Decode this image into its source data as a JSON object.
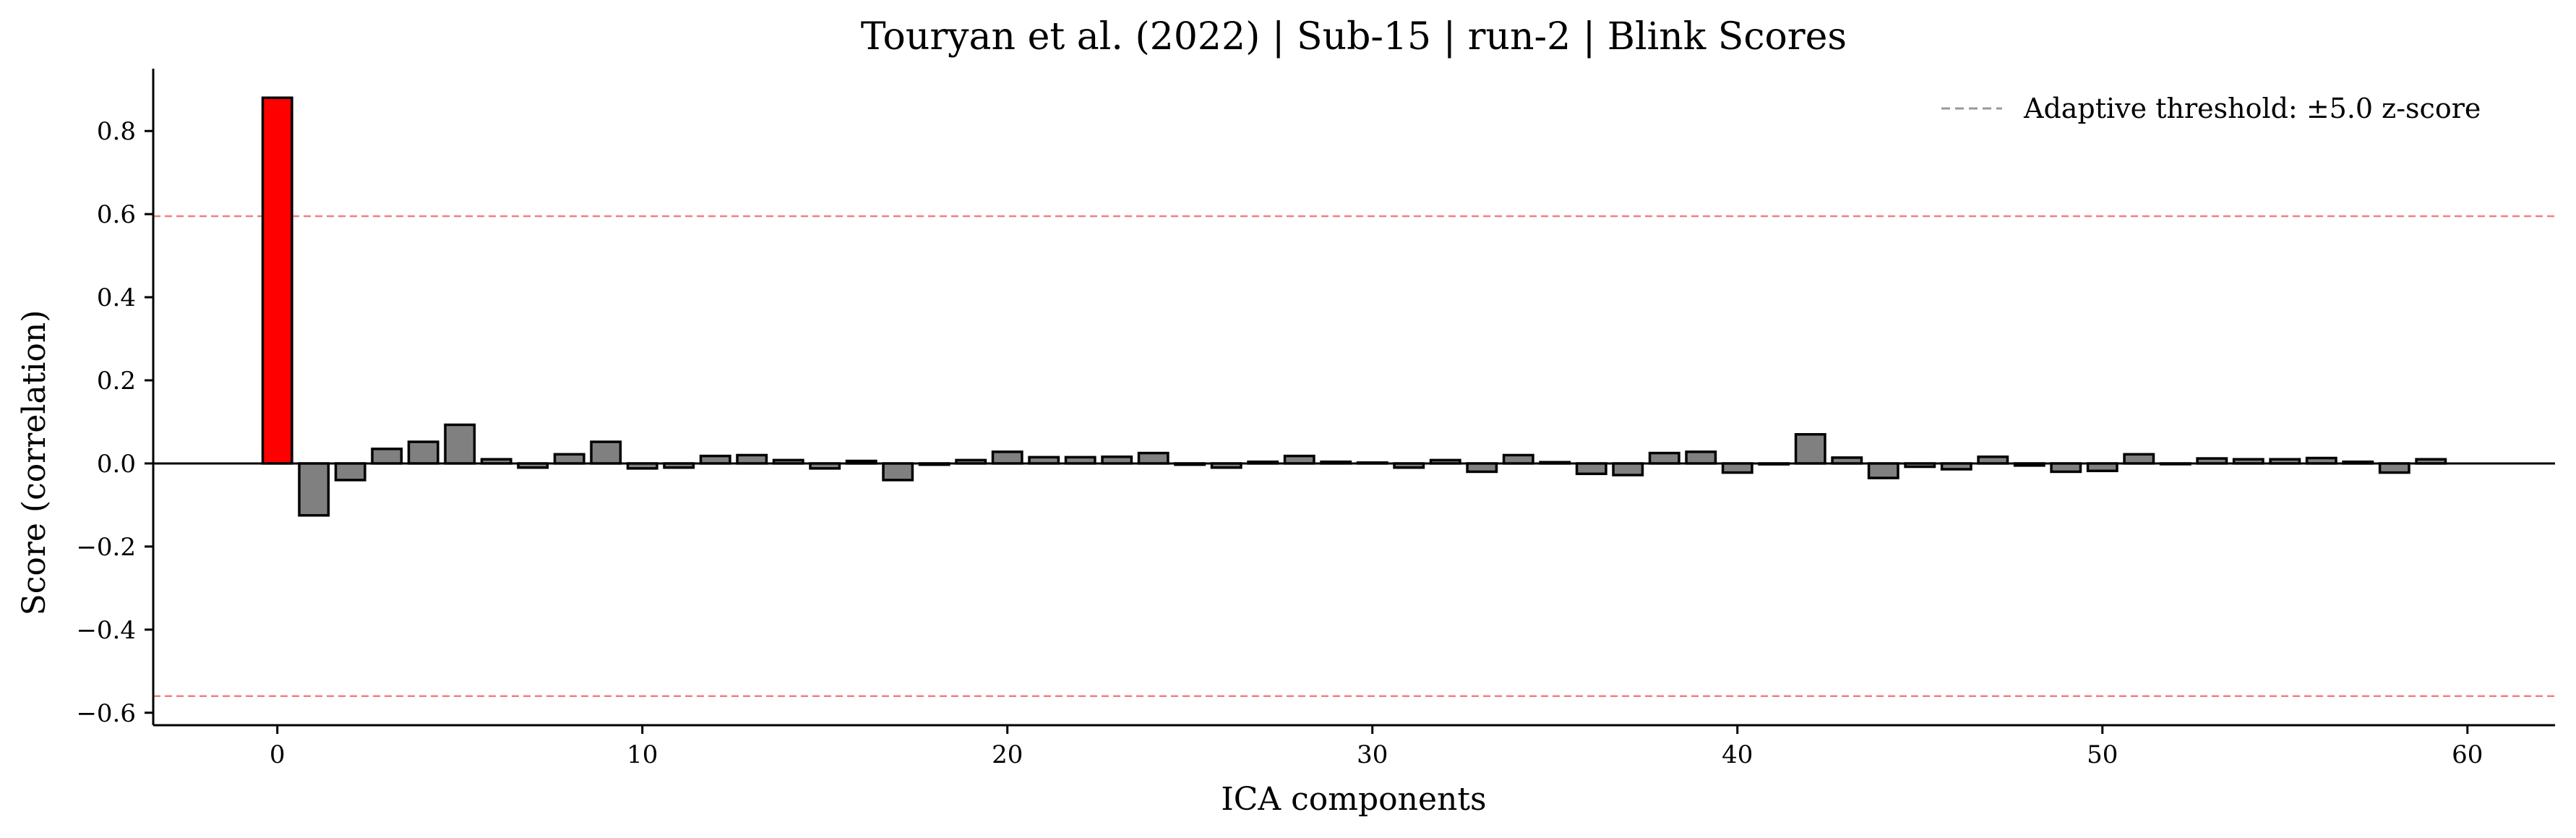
{
  "chart_data": {
    "type": "bar",
    "title": "Touryan et al. (2022) | Sub-15 | run-2 | Blink Scores",
    "xlabel": "ICA components",
    "ylabel": "Score (correlation)",
    "xlim": [
      -3.4,
      62.4
    ],
    "ylim": [
      -0.63,
      0.95
    ],
    "xticks": [
      0,
      10,
      20,
      30,
      40,
      50,
      60
    ],
    "xtick_labels": [
      "0",
      "10",
      "20",
      "30",
      "40",
      "50",
      "60"
    ],
    "yticks": [
      -0.6,
      -0.4,
      -0.2,
      0.0,
      0.2,
      0.4,
      0.6,
      0.8
    ],
    "ytick_labels": [
      "−0.6",
      "−0.4",
      "−0.2",
      "0.0",
      "0.2",
      "0.4",
      "0.6",
      "0.8"
    ],
    "components": [
      0,
      1,
      2,
      3,
      4,
      5,
      6,
      7,
      8,
      9,
      10,
      11,
      12,
      13,
      14,
      15,
      16,
      17,
      18,
      19,
      20,
      21,
      22,
      23,
      24,
      25,
      26,
      27,
      28,
      29,
      30,
      31,
      32,
      33,
      34,
      35,
      36,
      37,
      38,
      39,
      40,
      41,
      42,
      43,
      44,
      45,
      46,
      47,
      48,
      49,
      50,
      51,
      52,
      53,
      54,
      55,
      56,
      57,
      58,
      59
    ],
    "values": [
      0.88,
      -0.125,
      -0.04,
      0.035,
      0.052,
      0.093,
      0.01,
      -0.01,
      0.022,
      0.052,
      -0.012,
      -0.01,
      0.018,
      0.02,
      0.008,
      -0.012,
      0.006,
      -0.04,
      -0.003,
      0.008,
      0.028,
      0.015,
      0.015,
      0.016,
      0.025,
      -0.003,
      -0.01,
      0.004,
      0.018,
      0.004,
      0.002,
      -0.01,
      0.008,
      -0.02,
      0.02,
      0.003,
      -0.025,
      -0.028,
      0.025,
      0.028,
      -0.022,
      -0.002,
      0.07,
      0.014,
      -0.035,
      -0.008,
      -0.014,
      0.016,
      -0.005,
      -0.02,
      -0.018,
      0.022,
      0.0,
      0.012,
      0.01,
      0.01,
      0.013,
      0.004,
      -0.022,
      0.01
    ],
    "flagged_components": [
      0
    ],
    "thresholds": {
      "upper": 0.595,
      "lower": -0.56
    },
    "legend": {
      "label": "Adaptive threshold: ±5.0 z-score",
      "position": "top-right"
    },
    "colors": {
      "flagged": "#ff0000",
      "normal": "#808080",
      "edge": "#000000",
      "threshold": "#f08080",
      "legend_line": "#999999",
      "zero_line": "#000000"
    }
  }
}
